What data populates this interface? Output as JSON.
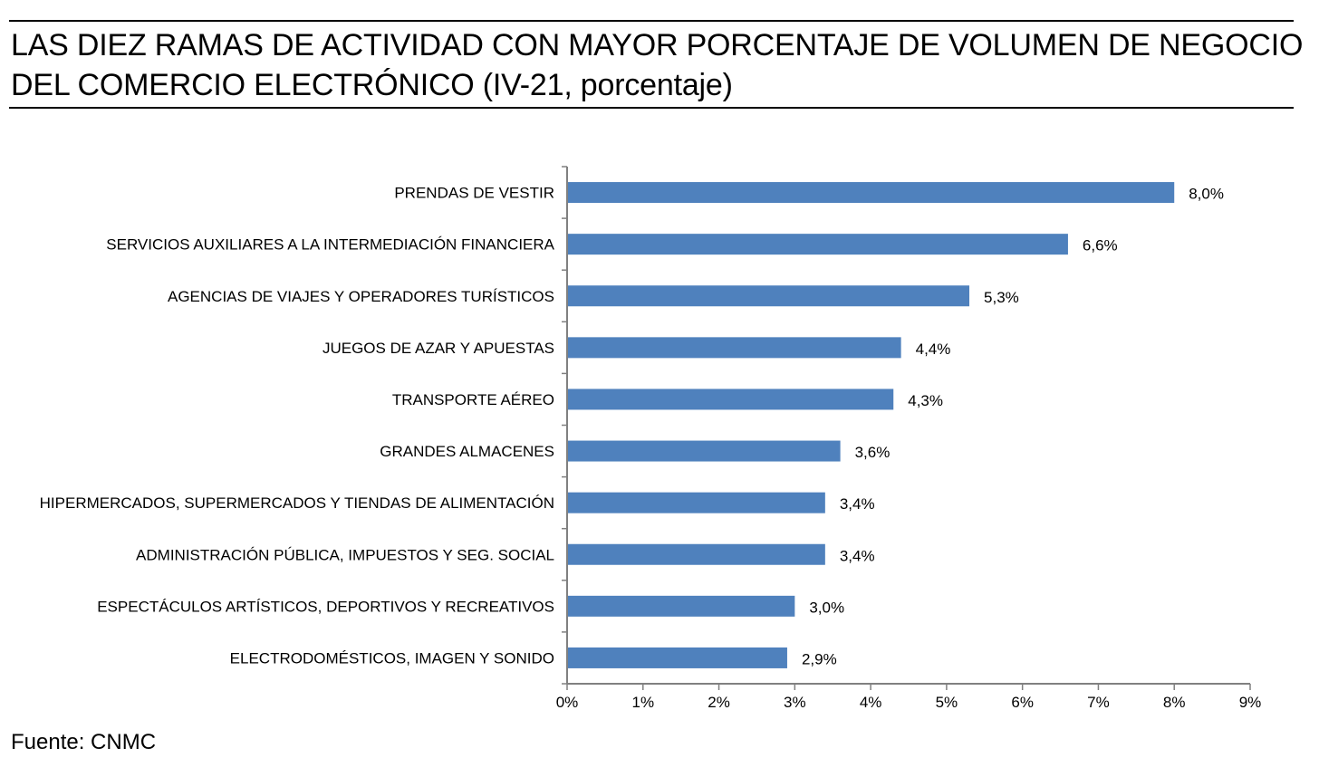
{
  "title_line1": "LAS DIEZ RAMAS DE ACTIVIDAD CON MAYOR PORCENTAJE DE VOLUMEN DE NEGOCIO",
  "title_line2": "DEL COMERCIO ELECTRÓNICO (IV-21, porcentaje)",
  "source": "Fuente: CNMC",
  "colors": {
    "bar": "#4f81bd",
    "axis": "#808080",
    "text": "#000000"
  },
  "chart_data": {
    "type": "bar",
    "orientation": "horizontal",
    "title": "LAS DIEZ RAMAS DE ACTIVIDAD CON MAYOR PORCENTAJE DE VOLUMEN DE NEGOCIO DEL COMERCIO ELECTRÓNICO (IV-21, porcentaje)",
    "xlabel": "",
    "ylabel": "",
    "xlim": [
      0,
      9
    ],
    "grid": false,
    "categories": [
      "PRENDAS DE VESTIR",
      "SERVICIOS AUXILIARES A LA INTERMEDIACIÓN FINANCIERA",
      "AGENCIAS DE VIAJES Y OPERADORES TURÍSTICOS",
      "JUEGOS DE AZAR Y APUESTAS",
      "TRANSPORTE AÉREO",
      "GRANDES ALMACENES",
      "HIPERMERCADOS, SUPERMERCADOS Y TIENDAS DE ALIMENTACIÓN",
      "ADMINISTRACIÓN PÚBLICA, IMPUESTOS Y SEG. SOCIAL",
      "ESPECTÁCULOS ARTÍSTICOS, DEPORTIVOS Y RECREATIVOS",
      "ELECTRODOMÉSTICOS,  IMAGEN Y SONIDO"
    ],
    "values": [
      8.0,
      6.6,
      5.3,
      4.4,
      4.3,
      3.6,
      3.4,
      3.4,
      3.0,
      2.9
    ],
    "data_labels": [
      "8,0%",
      "6,6%",
      "5,3%",
      "4,4%",
      "4,3%",
      "3,6%",
      "3,4%",
      "3,4%",
      "3,0%",
      "2,9%"
    ],
    "x_ticks": [
      0,
      1,
      2,
      3,
      4,
      5,
      6,
      7,
      8,
      9
    ],
    "x_tick_labels": [
      "0%",
      "1%",
      "2%",
      "3%",
      "4%",
      "5%",
      "6%",
      "7%",
      "8%",
      "9%"
    ]
  }
}
